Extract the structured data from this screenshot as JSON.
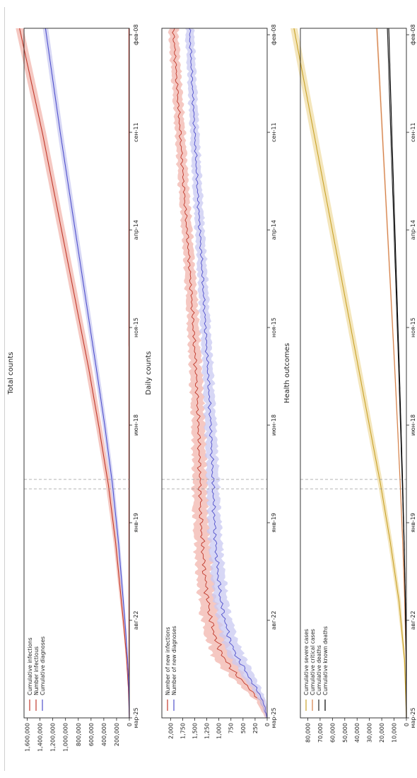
{
  "chart_data": [
    {
      "type": "area",
      "title": "Total counts",
      "xlabel": "",
      "ylabel": "",
      "x_ticks": [
        "мар-25",
        "авг-22",
        "янв-19",
        "июн-18",
        "ноя-15",
        "апр-14",
        "сен-11",
        "фев-08"
      ],
      "y_ticks": [
        "0",
        "200,000",
        "400,000",
        "600,000",
        "800,000",
        "1,000,000",
        "1,200,000",
        "1,400,000",
        "1,600,000"
      ],
      "ylim": [
        0,
        1650000
      ],
      "vlines_at": [
        3.92,
        4.08
      ],
      "legend": [
        "Cumulative infections",
        "Number infectious",
        "Cumulative diagnoses"
      ],
      "legend_position": "top-left",
      "series": [
        {
          "name": "Cumulative infections",
          "color": "#c0392b",
          "band": "#f1b6ae",
          "points": [
            [
              0,
              0
            ],
            [
              0.5,
              15000
            ],
            [
              1,
              42000
            ],
            [
              1.5,
              80000
            ],
            [
              2,
              125000
            ],
            [
              3,
              215000
            ],
            [
              4,
              330000
            ],
            [
              5,
              480000
            ],
            [
              6,
              640000
            ],
            [
              7,
              820000
            ],
            [
              8,
              1000000
            ],
            [
              9,
              1180000
            ],
            [
              10,
              1360000
            ],
            [
              11,
              1560000
            ]
          ],
          "spread": [
            [
              0,
              0
            ],
            [
              1,
              10000
            ],
            [
              2,
              22000
            ],
            [
              4,
              40000
            ],
            [
              6,
              50000
            ],
            [
              8,
              55000
            ],
            [
              10,
              58000
            ],
            [
              11,
              60000
            ]
          ]
        },
        {
          "name": "Number infectious",
          "color": "#c0392b",
          "band": "#f1b6ae",
          "points": [
            [
              0,
              0
            ],
            [
              0.4,
              2500
            ],
            [
              1,
              5000
            ],
            [
              2,
              5500
            ],
            [
              4,
              6000
            ],
            [
              6,
              6000
            ],
            [
              8,
              6500
            ],
            [
              11,
              6500
            ]
          ],
          "spread": [
            [
              0,
              0
            ],
            [
              1,
              2000
            ],
            [
              11,
              2500
            ]
          ]
        },
        {
          "name": "Cumulative diagnoses",
          "color": "#5050cc",
          "band": "#c9c9f2",
          "points": [
            [
              0,
              0
            ],
            [
              0.5,
              8000
            ],
            [
              1,
              28000
            ],
            [
              1.5,
              58000
            ],
            [
              2,
              95000
            ],
            [
              3,
              170000
            ],
            [
              4,
              265000
            ],
            [
              5,
              385000
            ],
            [
              6,
              520000
            ],
            [
              7,
              660000
            ],
            [
              8,
              800000
            ],
            [
              9,
              940000
            ],
            [
              10,
              1080000
            ],
            [
              11,
              1210000
            ]
          ],
          "spread": [
            [
              0,
              0
            ],
            [
              1,
              8000
            ],
            [
              2,
              18000
            ],
            [
              4,
              30000
            ],
            [
              6,
              36000
            ],
            [
              8,
              40000
            ],
            [
              11,
              42000
            ]
          ]
        }
      ]
    },
    {
      "type": "area",
      "title": "Daily counts",
      "xlabel": "",
      "ylabel": "",
      "x_ticks": [
        "мар-25",
        "авг-22",
        "янв-19",
        "июн-18",
        "ноя-15",
        "апр-14",
        "сен-11",
        "фев-08"
      ],
      "y_ticks": [
        "0",
        "250",
        "500",
        "750",
        "1,000",
        "1,250",
        "1,500",
        "1,750",
        "2,000"
      ],
      "ylim": [
        0,
        2180
      ],
      "vlines_at": [
        3.92,
        4.08
      ],
      "legend": [
        "Number of new infections",
        "Number of new diagnoses"
      ],
      "legend_position": "top-left",
      "series": [
        {
          "name": "Number of new infections",
          "color": "#c0392b",
          "band": "#f1b6ae",
          "points": [
            [
              0,
              0
            ],
            [
              0.3,
              150
            ],
            [
              0.6,
              480
            ],
            [
              0.9,
              800
            ],
            [
              1.2,
              1000
            ],
            [
              1.6,
              1150
            ],
            [
              2,
              1230
            ],
            [
              2.5,
              1300
            ],
            [
              3,
              1340
            ],
            [
              3.5,
              1380
            ],
            [
              4,
              1390
            ],
            [
              5,
              1420
            ],
            [
              6,
              1480
            ],
            [
              7,
              1550
            ],
            [
              8,
              1630
            ],
            [
              9,
              1720
            ],
            [
              10,
              1800
            ],
            [
              11,
              1880
            ]
          ],
          "spread": [
            [
              0,
              40
            ],
            [
              1,
              220
            ],
            [
              2,
              180
            ],
            [
              4,
              150
            ],
            [
              6,
              130
            ],
            [
              8,
              110
            ],
            [
              11,
              100
            ]
          ]
        },
        {
          "name": "Number of new diagnoses",
          "color": "#5050cc",
          "band": "#c9c9f2",
          "points": [
            [
              0,
              0
            ],
            [
              0.3,
              90
            ],
            [
              0.6,
              300
            ],
            [
              0.9,
              520
            ],
            [
              1.2,
              720
            ],
            [
              1.6,
              860
            ],
            [
              2,
              960
            ],
            [
              2.5,
              1020
            ],
            [
              3,
              1070
            ],
            [
              3.5,
              1100
            ],
            [
              4,
              1120
            ],
            [
              5,
              1170
            ],
            [
              6,
              1230
            ],
            [
              7,
              1300
            ],
            [
              8,
              1370
            ],
            [
              9,
              1440
            ],
            [
              10,
              1500
            ],
            [
              11,
              1560
            ]
          ],
          "spread": [
            [
              0,
              30
            ],
            [
              1,
              170
            ],
            [
              2,
              150
            ],
            [
              4,
              130
            ],
            [
              6,
              110
            ],
            [
              8,
              100
            ],
            [
              11,
              90
            ]
          ]
        }
      ]
    },
    {
      "type": "area",
      "title": "Health outcomes",
      "xlabel": "",
      "ylabel": "",
      "x_ticks": [
        "мар-25",
        "авг-22",
        "янв-19",
        "июн-18",
        "ноя-15",
        "апр-14",
        "сен-11",
        "фев-08"
      ],
      "y_ticks": [
        "0",
        "10,000",
        "20,000",
        "30,000",
        "40,000",
        "50,000",
        "60,000",
        "70,000",
        "80,000"
      ],
      "ylim": [
        0,
        86000
      ],
      "vlines_at": [
        3.92,
        4.08
      ],
      "legend": [
        "Cumulative severe cases",
        "Cumulative critical cases",
        "Cumulative deaths",
        "Cumulative known deaths"
      ],
      "legend_position": "top-left",
      "series": [
        {
          "name": "Cumulative severe cases",
          "color": "#c8a22a",
          "band": "#f0dea6",
          "points": [
            [
              0,
              0
            ],
            [
              1,
              1500
            ],
            [
              2,
              6000
            ],
            [
              3,
              13000
            ],
            [
              4,
              21000
            ],
            [
              5,
              30000
            ],
            [
              6,
              39000
            ],
            [
              7,
              48000
            ],
            [
              8,
              57000
            ],
            [
              9,
              66000
            ],
            [
              10,
              75000
            ],
            [
              11,
              84000
            ]
          ],
          "spread": [
            [
              0,
              0
            ],
            [
              2,
              1500
            ],
            [
              5,
              2200
            ],
            [
              8,
              2600
            ],
            [
              11,
              2800
            ]
          ]
        },
        {
          "name": "Cumulative critical cases",
          "color": "#d4804a",
          "band": "#f2cdb2",
          "points": [
            [
              0,
              0
            ],
            [
              1,
              300
            ],
            [
              2,
              1400
            ],
            [
              3,
              3000
            ],
            [
              4,
              5000
            ],
            [
              5,
              7200
            ],
            [
              6,
              9500
            ],
            [
              7,
              12000
            ],
            [
              8,
              14500
            ],
            [
              9,
              17000
            ],
            [
              10,
              19500
            ],
            [
              11,
              22000
            ]
          ],
          "spread": [
            [
              0,
              0
            ],
            [
              3,
              400
            ],
            [
              11,
              700
            ]
          ]
        },
        {
          "name": "Cumulative deaths",
          "color": "#222222",
          "band": "#bcbcbc",
          "points": [
            [
              0,
              0
            ],
            [
              1,
              200
            ],
            [
              2,
              900
            ],
            [
              3,
              2000
            ],
            [
              4,
              3300
            ],
            [
              5,
              4800
            ],
            [
              6,
              6300
            ],
            [
              7,
              7900
            ],
            [
              8,
              9500
            ],
            [
              9,
              11100
            ],
            [
              10,
              12700
            ],
            [
              11,
              14200
            ]
          ],
          "spread": [
            [
              0,
              0
            ],
            [
              11,
              300
            ]
          ]
        },
        {
          "name": "Cumulative known deaths",
          "color": "#000000",
          "band": "#bcbcbc",
          "points": [
            [
              0,
              0
            ],
            [
              1,
              150
            ],
            [
              2,
              800
            ],
            [
              3,
              1800
            ],
            [
              4,
              3000
            ],
            [
              5,
              4400
            ],
            [
              6,
              5800
            ],
            [
              7,
              7300
            ],
            [
              8,
              8800
            ],
            [
              9,
              10300
            ],
            [
              10,
              11800
            ],
            [
              11,
              13200
            ]
          ],
          "spread": [
            [
              0,
              0
            ],
            [
              11,
              250
            ]
          ]
        }
      ]
    }
  ]
}
